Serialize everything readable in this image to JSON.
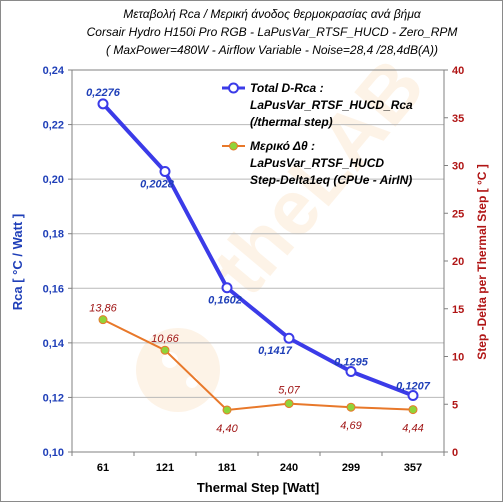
{
  "chart_data": {
    "type": "line",
    "title_lines": [
      "Μεταβολή Rca / Μερική άνοδος θερμοκρασίας ανά βήμα",
      "Corsair Hydro H150i Pro RGB - LaPusVar_RTSF_HUCD - Zero_RPM",
      "( MaxPower=480W  - Airflow Variable  - Noise=28,4 /28,4dB(A))"
    ],
    "xlabel": "Thermal Step [Watt]",
    "ylabel_left": "Rca  [ °C / Watt ]",
    "ylabel_right": "Step -Delta per Thermal Step  [ °C ]",
    "categories": [
      "61",
      "121",
      "181",
      "240",
      "299",
      "357"
    ],
    "y_left": {
      "lim": [
        0.1,
        0.24
      ],
      "ticks": [
        "0,10",
        "0,12",
        "0,14",
        "0,16",
        "0,18",
        "0,20",
        "0,22",
        "0,24"
      ]
    },
    "y_right": {
      "lim": [
        0,
        40
      ],
      "ticks": [
        "0",
        "5",
        "10",
        "15",
        "20",
        "25",
        "30",
        "35",
        "40"
      ]
    },
    "grid": "horizontal",
    "legend_position": "top-right",
    "series": [
      {
        "name": "Total D-Rca : LaPusVar_RTSF_HUCD_Rca (/thermal step)",
        "legend_lines": [
          "Total D-Rca :",
          "LaPusVar_RTSF_HUCD_Rca",
          "(/thermal step)"
        ],
        "axis": "left",
        "color": "#3b3be8",
        "marker_color": "#ffffff",
        "values": [
          0.2276,
          0.2028,
          0.1602,
          0.1417,
          0.1295,
          0.1207
        ],
        "labels": [
          "0,2276",
          "0,2028",
          "0,1602",
          "0,1417",
          "0,1295",
          "0,1207"
        ]
      },
      {
        "name": "Μερικό Δθ : LaPusVar_RTSF_HUCD Step-Delta1eq (CPUe - AirIN)",
        "legend_lines": [
          "Μερικό Δθ :",
          "LaPusVar_RTSF_HUCD",
          "Step-Delta1eq (CPUe - AirIN)"
        ],
        "axis": "right",
        "color": "#e8782a",
        "marker_color": "#8fd43a",
        "values": [
          13.86,
          10.66,
          4.4,
          5.07,
          4.69,
          4.44
        ],
        "labels": [
          "13,86",
          "10,66",
          "4,40",
          "5,07",
          "4,69",
          "4,44"
        ]
      }
    ]
  }
}
